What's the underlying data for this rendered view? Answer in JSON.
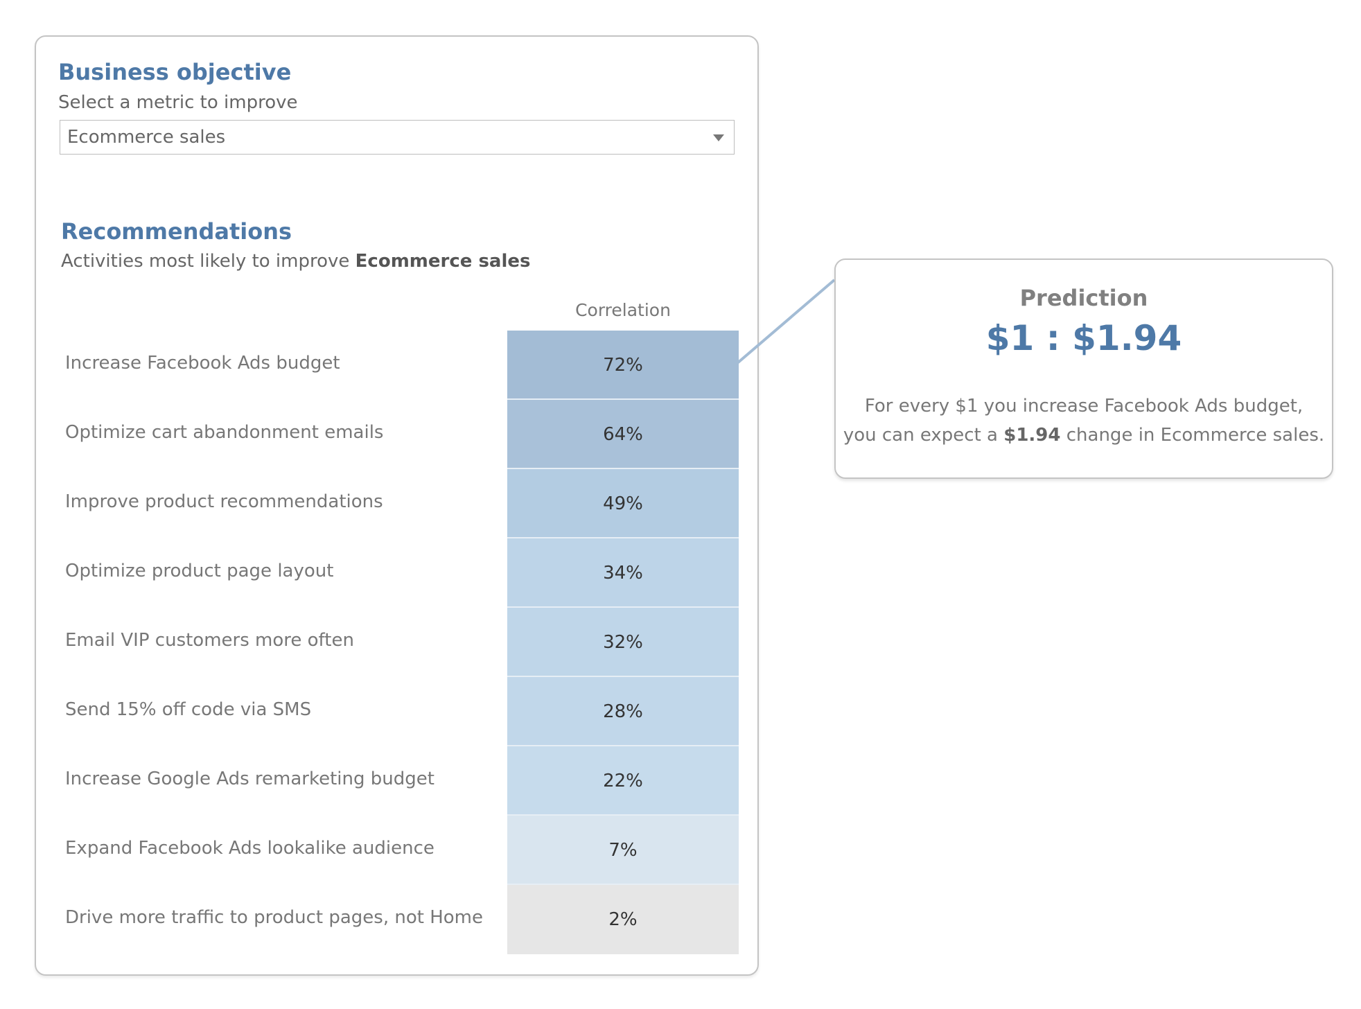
{
  "business_objective": {
    "title": "Business objective",
    "prompt": "Select a metric to improve",
    "selected_metric": "Ecommerce sales"
  },
  "recommendations": {
    "title": "Recommendations",
    "subtitle_prefix": "Activities most likely to improve ",
    "subtitle_metric": "Ecommerce sales",
    "column_header": "Correlation",
    "rows": [
      {
        "label": "Increase Facebook Ads budget",
        "value": "72%",
        "color": "#a3bcd5"
      },
      {
        "label": "Optimize cart abandonment emails",
        "value": "64%",
        "color": "#a9c1d9"
      },
      {
        "label": "Improve product recommendations",
        "value": "49%",
        "color": "#b3cce2"
      },
      {
        "label": "Optimize product page layout",
        "value": "34%",
        "color": "#bdd4e8"
      },
      {
        "label": "Email VIP customers more often",
        "value": "32%",
        "color": "#bfd6e9"
      },
      {
        "label": "Send 15% off code via SMS",
        "value": "28%",
        "color": "#c1d7ea"
      },
      {
        "label": "Increase Google Ads remarketing budget",
        "value": "22%",
        "color": "#c6dbec"
      },
      {
        "label": "Expand Facebook Ads lookalike audience",
        "value": "7%",
        "color": "#d9e5ef"
      },
      {
        "label": "Drive more traffic to product pages, not Home",
        "value": "2%",
        "color": "#e6e6e6"
      }
    ]
  },
  "prediction": {
    "title": "Prediction",
    "ratio": "$1 : $1.94",
    "line1": "For every $1 you increase Facebook Ads budget,",
    "line2_prefix": "you can expect a ",
    "line2_amount": "$1.94",
    "line2_suffix": " change in Ecommerce sales.",
    "connector_color": "#a3bcd5"
  }
}
